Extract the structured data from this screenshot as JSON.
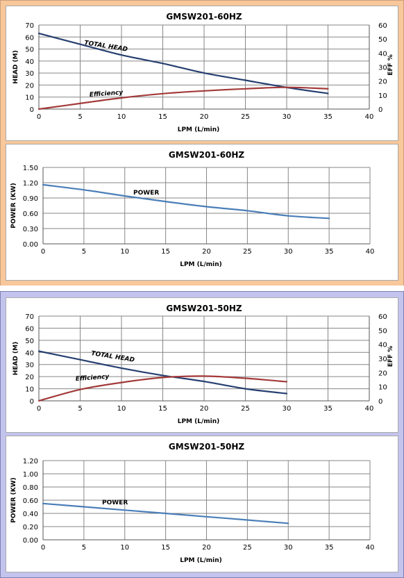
{
  "chart_data": [
    {
      "type": "line",
      "title": "GMSW201-60HZ",
      "xlabel": "LPM (L/min)",
      "ylabel": "HEAD (M)",
      "y2label": "EFF %",
      "xlim": [
        0,
        40
      ],
      "ylim": [
        0,
        70
      ],
      "y2lim": [
        0,
        60
      ],
      "x_ticks": [
        "0",
        "5",
        "10",
        "15",
        "20",
        "25",
        "30",
        "35",
        "40"
      ],
      "y_ticks": [
        "0",
        "10",
        "20",
        "30",
        "40",
        "50",
        "60",
        "70"
      ],
      "y2_ticks": [
        "0",
        "10",
        "20",
        "30",
        "40",
        "50",
        "60"
      ],
      "grid": true,
      "series": [
        {
          "name": "TOTAL HEAD",
          "axis": "left",
          "color": "#263f70",
          "x": [
            0,
            5,
            10,
            15,
            20,
            25,
            30,
            35
          ],
          "y": [
            63,
            54,
            45,
            38,
            30,
            24,
            18,
            13
          ]
        },
        {
          "name": "Efficiency",
          "axis": "right",
          "color": "#a33a3a",
          "x": [
            0,
            5,
            10,
            15,
            20,
            25,
            30,
            35
          ],
          "y": [
            0,
            4,
            8,
            11,
            13,
            14.5,
            15.5,
            14.5
          ]
        }
      ]
    },
    {
      "type": "line",
      "title": "GMSW201-60HZ",
      "xlabel": "LPM  (L/min)",
      "ylabel": "POWER (KW)",
      "xlim": [
        0,
        40
      ],
      "ylim": [
        0,
        1.5
      ],
      "x_ticks": [
        "0",
        "5",
        "10",
        "15",
        "20",
        "25",
        "30",
        "35",
        "40"
      ],
      "y_ticks": [
        "0.00",
        "0.30",
        "0.60",
        "0.90",
        "1.20",
        "1.50"
      ],
      "grid": true,
      "series": [
        {
          "name": "POWER",
          "color": "#4a7eb8",
          "x": [
            0,
            5,
            10,
            15,
            20,
            25,
            30,
            35
          ],
          "y": [
            1.16,
            1.06,
            0.94,
            0.83,
            0.73,
            0.65,
            0.55,
            0.5
          ]
        }
      ]
    },
    {
      "type": "line",
      "title": "GMSW201-50HZ",
      "xlabel": "LPM (L/min)",
      "ylabel": "HEAD (M)",
      "y2label": "EFF %",
      "xlim": [
        0,
        40
      ],
      "ylim": [
        0,
        70
      ],
      "y2lim": [
        0,
        60
      ],
      "x_ticks": [
        "0",
        "5",
        "10",
        "15",
        "20",
        "25",
        "30",
        "35",
        "40"
      ],
      "y_ticks": [
        "0",
        "10",
        "20",
        "30",
        "40",
        "50",
        "60",
        "70"
      ],
      "y2_ticks": [
        "0",
        "10",
        "20",
        "30",
        "40",
        "50",
        "60"
      ],
      "grid": true,
      "series": [
        {
          "name": "TOTAL HEAD",
          "axis": "left",
          "color": "#263f70",
          "x": [
            0,
            5,
            10,
            15,
            20,
            25,
            30
          ],
          "y": [
            41,
            34,
            27,
            21,
            16,
            10,
            6
          ]
        },
        {
          "name": "Efficiency",
          "axis": "right",
          "color": "#a33a3a",
          "x": [
            0,
            5,
            10,
            15,
            20,
            25,
            30
          ],
          "y": [
            0,
            8,
            13,
            16.5,
            17.5,
            16,
            13.5
          ]
        }
      ]
    },
    {
      "type": "line",
      "title": "GMSW201-50HZ",
      "xlabel": "LPM  (L/min)",
      "ylabel": "POWER (KW)",
      "xlim": [
        0,
        40
      ],
      "ylim": [
        0,
        1.2
      ],
      "x_ticks": [
        "0",
        "5",
        "10",
        "15",
        "20",
        "25",
        "30",
        "35",
        "40"
      ],
      "y_ticks": [
        "0.00",
        "0.20",
        "0.40",
        "0.60",
        "0.80",
        "1.00",
        "1.20"
      ],
      "grid": true,
      "series": [
        {
          "name": "POWER",
          "color": "#4a7eb8",
          "x": [
            0,
            5,
            10,
            15,
            20,
            25,
            30
          ],
          "y": [
            0.55,
            0.5,
            0.45,
            0.4,
            0.35,
            0.3,
            0.25
          ]
        }
      ]
    }
  ]
}
